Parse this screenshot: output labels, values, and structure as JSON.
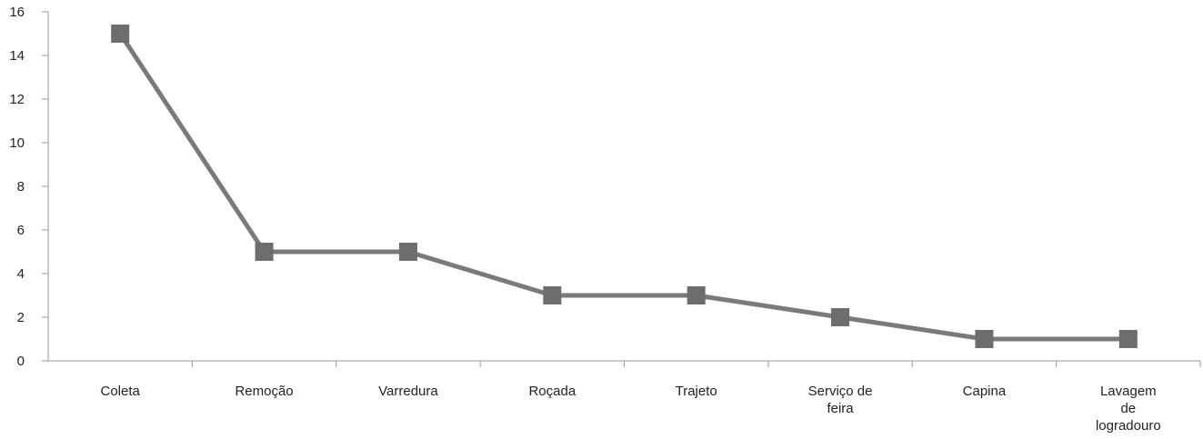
{
  "chart_data": {
    "type": "line",
    "categories": [
      [
        "Coleta"
      ],
      [
        "Remoção"
      ],
      [
        "Varredura"
      ],
      [
        "Roçada"
      ],
      [
        "Trajeto"
      ],
      [
        "Serviço de",
        "feira"
      ],
      [
        "Capina"
      ],
      [
        "Lavagem",
        "de",
        "logradouro"
      ]
    ],
    "series": [
      {
        "values": [
          15,
          5,
          5,
          3,
          3,
          2,
          1,
          1
        ]
      }
    ],
    "ylim": [
      0,
      16
    ],
    "yticks": [
      0,
      2,
      4,
      6,
      8,
      10,
      12,
      14,
      16
    ],
    "grid": false,
    "legend": "none",
    "colors": {
      "line": "#7a7a7a",
      "marker": "#6d6d6f",
      "axis": "#9a9a9a",
      "text": "#222222"
    }
  }
}
